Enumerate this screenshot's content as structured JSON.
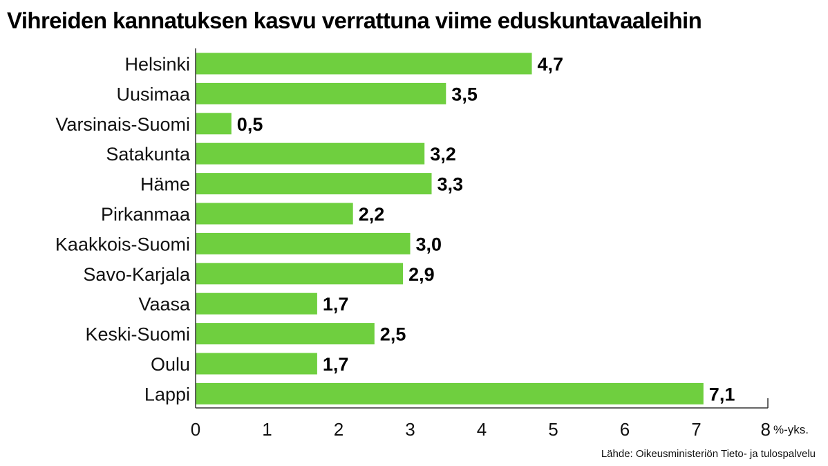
{
  "chart_data": {
    "type": "bar",
    "orientation": "horizontal",
    "title": "Vihreiden kannatuksen kasvu verrattuna viime eduskuntavaaleihin",
    "categories": [
      "Helsinki",
      "Uusimaa",
      "Varsinais-Suomi",
      "Satakunta",
      "Häme",
      "Pirkanmaa",
      "Kaakkois-Suomi",
      "Savo-Karjala",
      "Vaasa",
      "Keski-Suomi",
      "Oulu",
      "Lappi"
    ],
    "values": [
      4.7,
      3.5,
      0.5,
      3.2,
      3.3,
      2.2,
      3.0,
      2.9,
      1.7,
      2.5,
      1.7,
      7.1
    ],
    "value_labels": [
      "4,7",
      "3,5",
      "0,5",
      "3,2",
      "3,3",
      "2,2",
      "3,0",
      "2,9",
      "1,7",
      "2,5",
      "1,7",
      "7,1"
    ],
    "x_ticks": [
      "0",
      "1",
      "2",
      "3",
      "4",
      "5",
      "6",
      "7",
      "8"
    ],
    "x_unit": "%-yks.",
    "xlim": [
      0,
      8
    ],
    "grid": false,
    "legend": "none",
    "bar_color": "#6fcf3f"
  },
  "source": "Lähde: Oikeusministeriön Tieto- ja tulospalvelu"
}
